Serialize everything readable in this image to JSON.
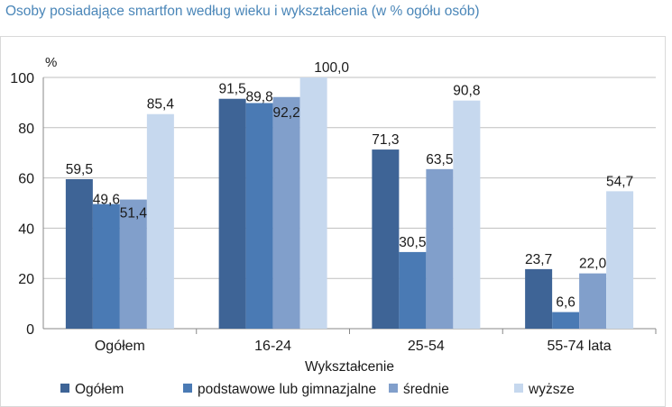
{
  "title": "Osoby posiadające smartfon według wieku i wykształcenia (w % ogółu osób)",
  "chart_data": {
    "type": "bar",
    "title": "Osoby posiadające smartfon według wieku i wykształcenia (w % ogółu osób)",
    "ylabel": "%",
    "xlabel": "Wykształcenie",
    "ylim": [
      0,
      100
    ],
    "yticks": [
      0,
      20,
      40,
      60,
      80,
      100
    ],
    "grid": true,
    "legend_position": "bottom",
    "categories": [
      "Ogółem",
      "16-24",
      "25-54",
      "55-74 lata"
    ],
    "series": [
      {
        "name": "Ogółem",
        "color": "#3e6496",
        "values": [
          59.5,
          91.5,
          71.3,
          23.7
        ]
      },
      {
        "name": "podstawowe lub gimnazjalne",
        "color": "#4a7ab4",
        "values": [
          49.6,
          89.8,
          30.5,
          6.6
        ]
      },
      {
        "name": "średnie",
        "color": "#819fcb",
        "values": [
          51.4,
          92.2,
          63.5,
          22.0
        ]
      },
      {
        "name": "wyższe",
        "color": "#c6d8ee",
        "values": [
          85.4,
          100.0,
          90.8,
          54.7
        ]
      }
    ]
  }
}
